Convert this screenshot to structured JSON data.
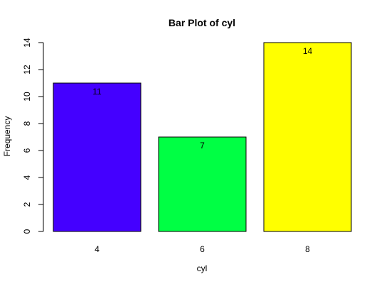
{
  "chart_data": {
    "type": "bar",
    "title": "Bar Plot of cyl",
    "xlabel": "cyl",
    "ylabel": "Frequency",
    "categories": [
      "4",
      "6",
      "8"
    ],
    "values": [
      11,
      7,
      14
    ],
    "data_labels": [
      "11",
      "7",
      "14"
    ],
    "bar_colors": [
      "#4400ff",
      "#00ff44",
      "#ffff00"
    ],
    "ylim": [
      0,
      14
    ],
    "yticks": [
      0,
      2,
      4,
      6,
      8,
      10,
      12,
      14
    ],
    "ytick_labels": [
      "0",
      "2",
      "4",
      "6",
      "8",
      "10",
      "12",
      "14"
    ],
    "grid": false,
    "legend": "none"
  }
}
